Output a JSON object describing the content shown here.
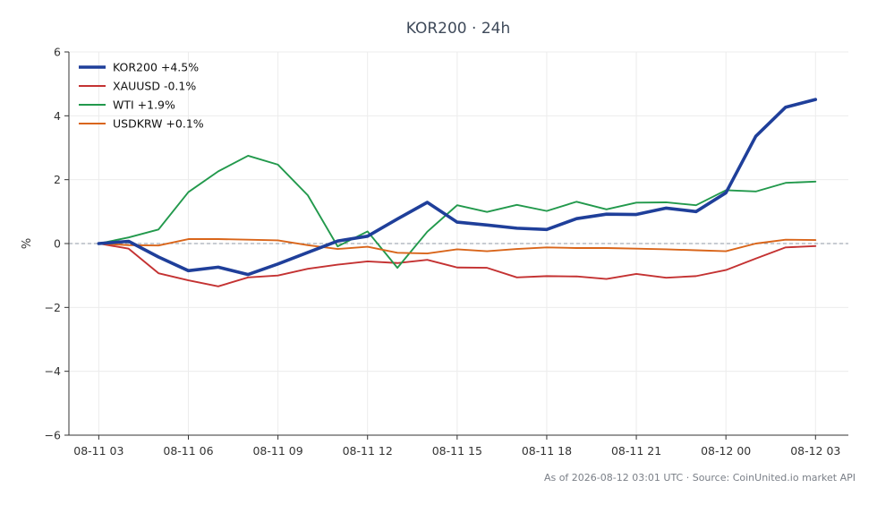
{
  "chart_data": {
    "type": "line",
    "title": "KOR200 · 24h",
    "xlabel": "",
    "ylabel": "%",
    "ylim": [
      -6,
      6
    ],
    "yticks": [
      6,
      4,
      2,
      0,
      -2,
      -4,
      -6
    ],
    "ytick_labels": [
      "6",
      "4",
      "2",
      "0",
      "−2",
      "−4",
      "−6"
    ],
    "xlim": [
      "2026-08-11 02:00",
      "2026-08-12 04:06"
    ],
    "xticks": [
      "2026-08-11 03:00",
      "2026-08-11 06:00",
      "2026-08-11 09:00",
      "2026-08-11 12:00",
      "2026-08-11 15:00",
      "2026-08-11 18:00",
      "2026-08-11 21:00",
      "2026-08-12 00:00",
      "2026-08-12 03:00"
    ],
    "xtick_labels": [
      "08-11 03",
      "08-11 06",
      "08-11 09",
      "08-11 12",
      "08-11 15",
      "08-11 18",
      "08-11 21",
      "08-12 00",
      "08-12 03"
    ],
    "grid": true,
    "zero_line": true,
    "legend_position": "top-left",
    "x": [
      "2026-08-11 03:00",
      "2026-08-11 04:00",
      "2026-08-11 05:00",
      "2026-08-11 06:00",
      "2026-08-11 07:00",
      "2026-08-11 08:00",
      "2026-08-11 09:00",
      "2026-08-11 10:00",
      "2026-08-11 11:00",
      "2026-08-11 12:00",
      "2026-08-11 13:00",
      "2026-08-11 14:00",
      "2026-08-11 15:00",
      "2026-08-11 16:00",
      "2026-08-11 17:00",
      "2026-08-11 18:00",
      "2026-08-11 19:00",
      "2026-08-11 20:00",
      "2026-08-11 21:00",
      "2026-08-11 22:00",
      "2026-08-11 23:00",
      "2026-08-12 00:00",
      "2026-08-12 01:00",
      "2026-08-12 02:00",
      "2026-08-12 03:00"
    ],
    "series": [
      {
        "name": "KOR200 +4.5%",
        "color": "#1f3f9a",
        "width": 3.6,
        "values": [
          0.0,
          0.07,
          -0.42,
          -0.85,
          -0.74,
          -0.97,
          -0.64,
          -0.28,
          0.08,
          0.23,
          0.77,
          1.29,
          0.67,
          0.58,
          0.48,
          0.44,
          0.78,
          0.92,
          0.91,
          1.11,
          1.0,
          1.59,
          3.36,
          4.27,
          4.51
        ]
      },
      {
        "name": "XAUUSD -0.1%",
        "color": "#c43232",
        "width": 1.9,
        "values": [
          0.0,
          -0.16,
          -0.93,
          -1.15,
          -1.34,
          -1.06,
          -1.0,
          -0.79,
          -0.66,
          -0.56,
          -0.61,
          -0.51,
          -0.75,
          -0.76,
          -1.06,
          -1.02,
          -1.03,
          -1.11,
          -0.95,
          -1.07,
          -1.02,
          -0.83,
          -0.47,
          -0.12,
          -0.08
        ]
      },
      {
        "name": "WTI +1.9%",
        "color": "#22994c",
        "width": 1.9,
        "values": [
          0.0,
          0.19,
          0.44,
          1.61,
          2.26,
          2.75,
          2.47,
          1.51,
          -0.09,
          0.38,
          -0.76,
          0.37,
          1.2,
          0.99,
          1.21,
          1.02,
          1.31,
          1.07,
          1.28,
          1.29,
          1.2,
          1.67,
          1.63,
          1.9,
          1.94
        ]
      },
      {
        "name": "USDKRW +0.1%",
        "color": "#d9651a",
        "width": 1.9,
        "values": [
          0.0,
          -0.05,
          -0.06,
          0.14,
          0.14,
          0.12,
          0.1,
          -0.05,
          -0.17,
          -0.1,
          -0.29,
          -0.31,
          -0.18,
          -0.24,
          -0.17,
          -0.12,
          -0.14,
          -0.14,
          -0.16,
          -0.18,
          -0.21,
          -0.24,
          0.0,
          0.12,
          0.11
        ]
      }
    ]
  },
  "footnote": "As of 2026-08-12 03:01 UTC · Source: CoinUnited.io market API"
}
